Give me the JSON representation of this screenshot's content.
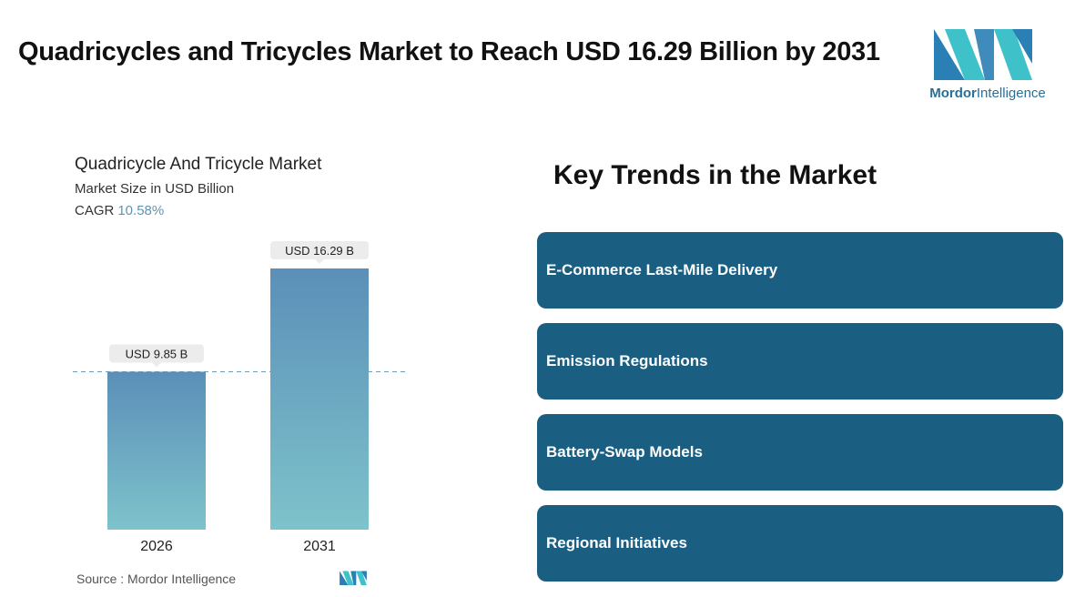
{
  "page": {
    "title": "Quadricycles and Tricycles Market to Reach USD 16.29 Billion by 2031"
  },
  "logo": {
    "brand_bold": "Mordor",
    "brand_rest": "Intelligence",
    "colors": {
      "dark": "#2a7fb5",
      "light": "#3fc1c9"
    }
  },
  "chart_data": {
    "type": "bar",
    "title": "Quadricycle And Tricycle Market",
    "subtitle": "Market Size in USD Billion",
    "cagr_label": "CAGR",
    "cagr_value": "10.58%",
    "categories": [
      "2026",
      "2031"
    ],
    "values": [
      9.85,
      16.29
    ],
    "data_labels": [
      "USD 9.85 B",
      "USD 16.29 B"
    ],
    "xlabel": "",
    "ylabel": "",
    "ylim": [
      0,
      16.29
    ],
    "reference_line": 9.85,
    "grid": false,
    "colors": {
      "bar_top": "#5b8fb8",
      "bar_bottom": "#7ec3cb",
      "label_bg": "#ececec"
    }
  },
  "source": {
    "text": "Source :  Mordor Intelligence"
  },
  "trends": {
    "title": "Key Trends in the Market",
    "items": [
      {
        "label": "E-Commerce Last-Mile Delivery"
      },
      {
        "label": "Emission Regulations"
      },
      {
        "label": "Battery-Swap Models"
      },
      {
        "label": "Regional Initiatives"
      }
    ],
    "card_color": "#1a5f82"
  }
}
